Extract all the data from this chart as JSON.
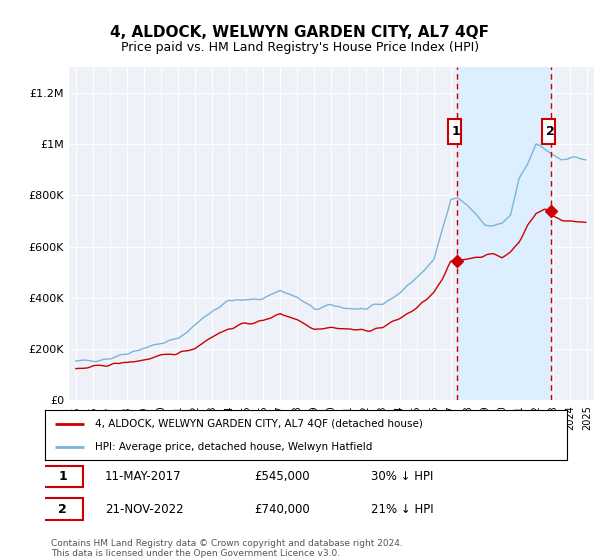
{
  "title": "4, ALDOCK, WELWYN GARDEN CITY, AL7 4QF",
  "subtitle": "Price paid vs. HM Land Registry's House Price Index (HPI)",
  "title_fontsize": 11,
  "subtitle_fontsize": 9,
  "ylim": [
    0,
    1300000
  ],
  "yticks": [
    0,
    200000,
    400000,
    600000,
    800000,
    1000000,
    1200000
  ],
  "ytick_labels": [
    "£0",
    "£200K",
    "£400K",
    "£600K",
    "£800K",
    "£1M",
    "£1.2M"
  ],
  "hpi_color": "#7ab4d8",
  "price_color": "#cc0000",
  "vline_color": "#cc0000",
  "shade_color": "#ddeeff",
  "background_color": "#eef2f8",
  "sale1_x": 2017.37,
  "sale1_y": 545000,
  "sale2_x": 2022.89,
  "sale2_y": 740000,
  "marker1_y": 1050000,
  "marker2_y": 1050000,
  "legend_label_red": "4, ALDOCK, WELWYN GARDEN CITY, AL7 4QF (detached house)",
  "legend_label_blue": "HPI: Average price, detached house, Welwyn Hatfield",
  "annotation1_label": "1",
  "annotation1_date": "11-MAY-2017",
  "annotation1_price": "£545,000",
  "annotation1_pct": "30% ↓ HPI",
  "annotation2_label": "2",
  "annotation2_date": "21-NOV-2022",
  "annotation2_price": "£740,000",
  "annotation2_pct": "21% ↓ HPI",
  "footer": "Contains HM Land Registry data © Crown copyright and database right 2024.\nThis data is licensed under the Open Government Licence v3.0.",
  "xlim_left": 1994.6,
  "xlim_right": 2025.4
}
